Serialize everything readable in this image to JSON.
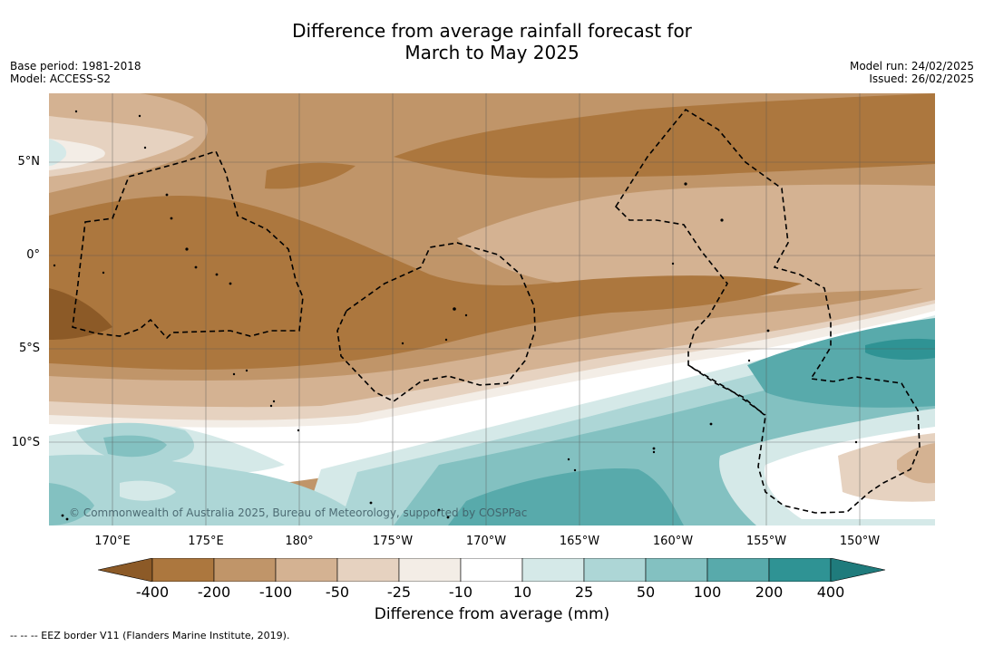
{
  "title": {
    "line1": "Difference from average rainfall forecast for",
    "line2": "March to May 2025"
  },
  "meta_left": {
    "base_period": "Base period: 1981-2018",
    "model": "Model: ACCESS-S2"
  },
  "meta_right": {
    "model_run": "Model run: 24/02/2025",
    "issued": "Issued: 26/02/2025"
  },
  "map": {
    "lon_labels": [
      "170°E",
      "175°E",
      "180°",
      "175°W",
      "170°W",
      "165°W",
      "160°W",
      "155°W",
      "150°W"
    ],
    "lat_labels": [
      "5°N",
      "0°",
      "5°S",
      "10°S"
    ],
    "copyright": "© Commonwealth of Australia 2025, Bureau of Meteorology, supported by COSPPac"
  },
  "colorbar": {
    "ticks": [
      "-400",
      "-200",
      "-100",
      "-50",
      "-25",
      "-10",
      "10",
      "25",
      "50",
      "100",
      "200",
      "400"
    ],
    "colors": [
      "#8c5a27",
      "#ac773e",
      "#c09569",
      "#d4b292",
      "#e6d2c0",
      "#f3ede6",
      "#ffffff",
      "#d5e9e8",
      "#add6d6",
      "#83c1c1",
      "#58aaab",
      "#2f9394",
      "#1f7b7c"
    ],
    "label": "Difference from average (mm)"
  },
  "footnote": "--  --  -- EEZ border V11 (Flanders Marine Institute, 2019)."
}
